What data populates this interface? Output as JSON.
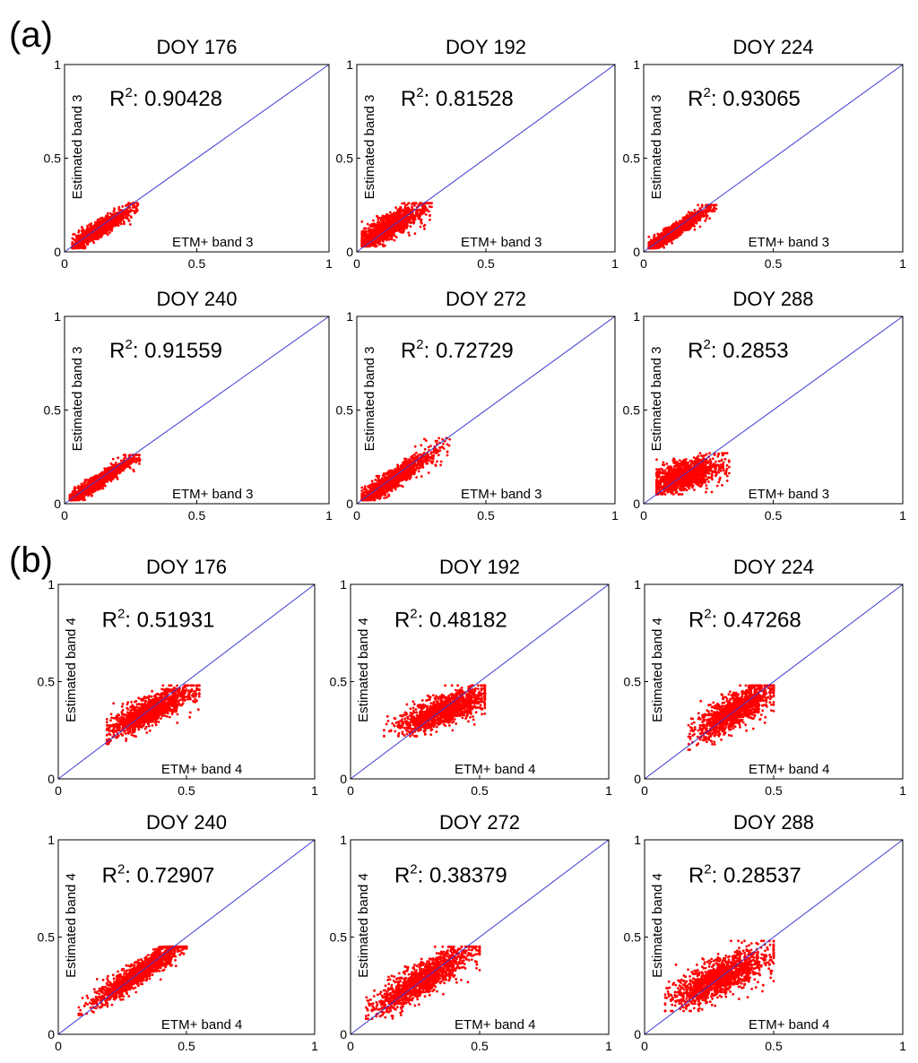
{
  "sections": [
    {
      "label": "(a)",
      "panels_index": [
        0,
        1,
        2,
        3,
        4,
        5
      ]
    },
    {
      "label": "(b)",
      "panels_index": [
        6,
        7,
        8,
        9,
        10,
        11
      ]
    }
  ],
  "colors": {
    "points": "#ff0000",
    "one_to_one": "#3a3ad0",
    "axes": "#000000"
  },
  "chart_data": [
    {
      "type": "scatter",
      "title": "DOY 176",
      "annotation": "0.90428",
      "xlabel": "ETM+  band 3",
      "ylabel": "Estimated band 3",
      "xlim": [
        0,
        1
      ],
      "ylim": [
        0,
        1
      ],
      "xticks": [
        "0",
        "0.5",
        "1"
      ],
      "yticks": [
        "0",
        "0.5",
        "1"
      ],
      "one_to_one_line": true,
      "cloud": {
        "x_range": [
          0.03,
          0.28
        ],
        "y_range": [
          0.02,
          0.26
        ],
        "center": [
          0.13,
          0.12
        ],
        "slope": 0.85,
        "spread": 0.02
      }
    },
    {
      "type": "scatter",
      "title": "DOY 192",
      "annotation": "0.81528",
      "xlabel": "ETM+  band 3",
      "ylabel": "Estimated band 3",
      "xlim": [
        0,
        1
      ],
      "ylim": [
        0,
        1
      ],
      "xticks": [
        "0",
        "0.5",
        "1"
      ],
      "yticks": [
        "0",
        "0.5",
        "1"
      ],
      "one_to_one_line": true,
      "cloud": {
        "x_range": [
          0.02,
          0.29
        ],
        "y_range": [
          0.03,
          0.26
        ],
        "center": [
          0.12,
          0.13
        ],
        "slope": 0.7,
        "spread": 0.03
      }
    },
    {
      "type": "scatter",
      "title": "DOY 224",
      "annotation": "0.93065",
      "xlabel": "ETM+  band 3",
      "ylabel": "Estimated band 3",
      "xlim": [
        0,
        1
      ],
      "ylim": [
        0,
        1
      ],
      "xticks": [
        "0",
        "0.5",
        "1"
      ],
      "yticks": [
        "0",
        "0.5",
        "1"
      ],
      "one_to_one_line": true,
      "cloud": {
        "x_range": [
          0.02,
          0.28
        ],
        "y_range": [
          0.02,
          0.25
        ],
        "center": [
          0.12,
          0.11
        ],
        "slope": 0.9,
        "spread": 0.018
      }
    },
    {
      "type": "scatter",
      "title": "DOY 240",
      "annotation": "0.91559",
      "xlabel": "ETM+  band 3",
      "ylabel": "Estimated band 3",
      "xlim": [
        0,
        1
      ],
      "ylim": [
        0,
        1
      ],
      "xticks": [
        "0",
        "0.5",
        "1"
      ],
      "yticks": [
        "0",
        "0.5",
        "1"
      ],
      "one_to_one_line": true,
      "cloud": {
        "x_range": [
          0.02,
          0.29
        ],
        "y_range": [
          0.02,
          0.26
        ],
        "center": [
          0.12,
          0.11
        ],
        "slope": 0.9,
        "spread": 0.018
      }
    },
    {
      "type": "scatter",
      "title": "DOY 272",
      "annotation": "0.72729",
      "xlabel": "ETM+  band 3",
      "ylabel": "Estimated band 3",
      "xlim": [
        0,
        1
      ],
      "ylim": [
        0,
        1
      ],
      "xticks": [
        "0",
        "0.5",
        "1"
      ],
      "yticks": [
        "0",
        "0.5",
        "1"
      ],
      "one_to_one_line": true,
      "cloud": {
        "x_range": [
          0.02,
          0.36
        ],
        "y_range": [
          0.02,
          0.35
        ],
        "center": [
          0.13,
          0.12
        ],
        "slope": 0.9,
        "spread": 0.025
      }
    },
    {
      "type": "scatter",
      "title": "DOY 288",
      "annotation": "0.2853",
      "xlabel": "ETM+  band 3",
      "ylabel": "Estimated band 3",
      "xlim": [
        0,
        1
      ],
      "ylim": [
        0,
        1
      ],
      "xticks": [
        "0",
        "0.5",
        "1"
      ],
      "yticks": [
        "0",
        "0.5",
        "1"
      ],
      "one_to_one_line": true,
      "cloud": {
        "x_range": [
          0.05,
          0.33
        ],
        "y_range": [
          0.05,
          0.27
        ],
        "center": [
          0.16,
          0.15
        ],
        "slope": 0.35,
        "spread": 0.035
      }
    },
    {
      "type": "scatter",
      "title": "DOY 176",
      "annotation": "0.51931",
      "xlabel": "ETM+  band 4",
      "ylabel": "Estimated band 4",
      "xlim": [
        0,
        1
      ],
      "ylim": [
        0,
        1
      ],
      "xticks": [
        "0",
        "0.5",
        "1"
      ],
      "yticks": [
        "0",
        "0.5",
        "1"
      ],
      "one_to_one_line": true,
      "cloud": {
        "x_range": [
          0.19,
          0.55
        ],
        "y_range": [
          0.18,
          0.48
        ],
        "center": [
          0.36,
          0.35
        ],
        "slope": 0.6,
        "spread": 0.035
      }
    },
    {
      "type": "scatter",
      "title": "DOY 192",
      "annotation": "0.48182",
      "xlabel": "ETM+  band 4",
      "ylabel": "Estimated band 4",
      "xlim": [
        0,
        1
      ],
      "ylim": [
        0,
        1
      ],
      "xticks": [
        "0",
        "0.5",
        "1"
      ],
      "yticks": [
        "0",
        "0.5",
        "1"
      ],
      "one_to_one_line": true,
      "cloud": {
        "x_range": [
          0.13,
          0.52
        ],
        "y_range": [
          0.22,
          0.48
        ],
        "center": [
          0.36,
          0.35
        ],
        "slope": 0.45,
        "spread": 0.035
      }
    },
    {
      "type": "scatter",
      "title": "DOY 224",
      "annotation": "0.47268",
      "xlabel": "ETM+  band 4",
      "ylabel": "Estimated band 4",
      "xlim": [
        0,
        1
      ],
      "ylim": [
        0,
        1
      ],
      "xticks": [
        "0",
        "0.5",
        "1"
      ],
      "yticks": [
        "0",
        "0.5",
        "1"
      ],
      "one_to_one_line": true,
      "cloud": {
        "x_range": [
          0.17,
          0.5
        ],
        "y_range": [
          0.15,
          0.48
        ],
        "center": [
          0.35,
          0.35
        ],
        "slope": 0.7,
        "spread": 0.04
      }
    },
    {
      "type": "scatter",
      "title": "DOY 240",
      "annotation": "0.72907",
      "xlabel": "ETM+  band 4",
      "ylabel": "Estimated band 4",
      "xlim": [
        0,
        1
      ],
      "ylim": [
        0,
        1
      ],
      "xticks": [
        "0",
        "0.5",
        "1"
      ],
      "yticks": [
        "0",
        "0.5",
        "1"
      ],
      "one_to_one_line": true,
      "cloud": {
        "x_range": [
          0.08,
          0.5
        ],
        "y_range": [
          0.1,
          0.45
        ],
        "center": [
          0.32,
          0.32
        ],
        "slope": 0.85,
        "spread": 0.03
      }
    },
    {
      "type": "scatter",
      "title": "DOY 272",
      "annotation": "0.38379",
      "xlabel": "ETM+  band 4",
      "ylabel": "Estimated band 4",
      "xlim": [
        0,
        1
      ],
      "ylim": [
        0,
        1
      ],
      "xticks": [
        "0",
        "0.5",
        "1"
      ],
      "yticks": [
        "0",
        "0.5",
        "1"
      ],
      "one_to_one_line": true,
      "cloud": {
        "x_range": [
          0.06,
          0.5
        ],
        "y_range": [
          0.08,
          0.45
        ],
        "center": [
          0.28,
          0.28
        ],
        "slope": 0.75,
        "spread": 0.04
      }
    },
    {
      "type": "scatter",
      "title": "DOY 288",
      "annotation": "0.28537",
      "xlabel": "ETM+  band 4",
      "ylabel": "Estimated band 4",
      "xlim": [
        0,
        1
      ],
      "ylim": [
        0,
        1
      ],
      "xticks": [
        "0",
        "0.5",
        "1"
      ],
      "yticks": [
        "0",
        "0.5",
        "1"
      ],
      "one_to_one_line": true,
      "cloud": {
        "x_range": [
          0.08,
          0.5
        ],
        "y_range": [
          0.12,
          0.48
        ],
        "center": [
          0.29,
          0.29
        ],
        "slope": 0.55,
        "spread": 0.045
      }
    }
  ]
}
